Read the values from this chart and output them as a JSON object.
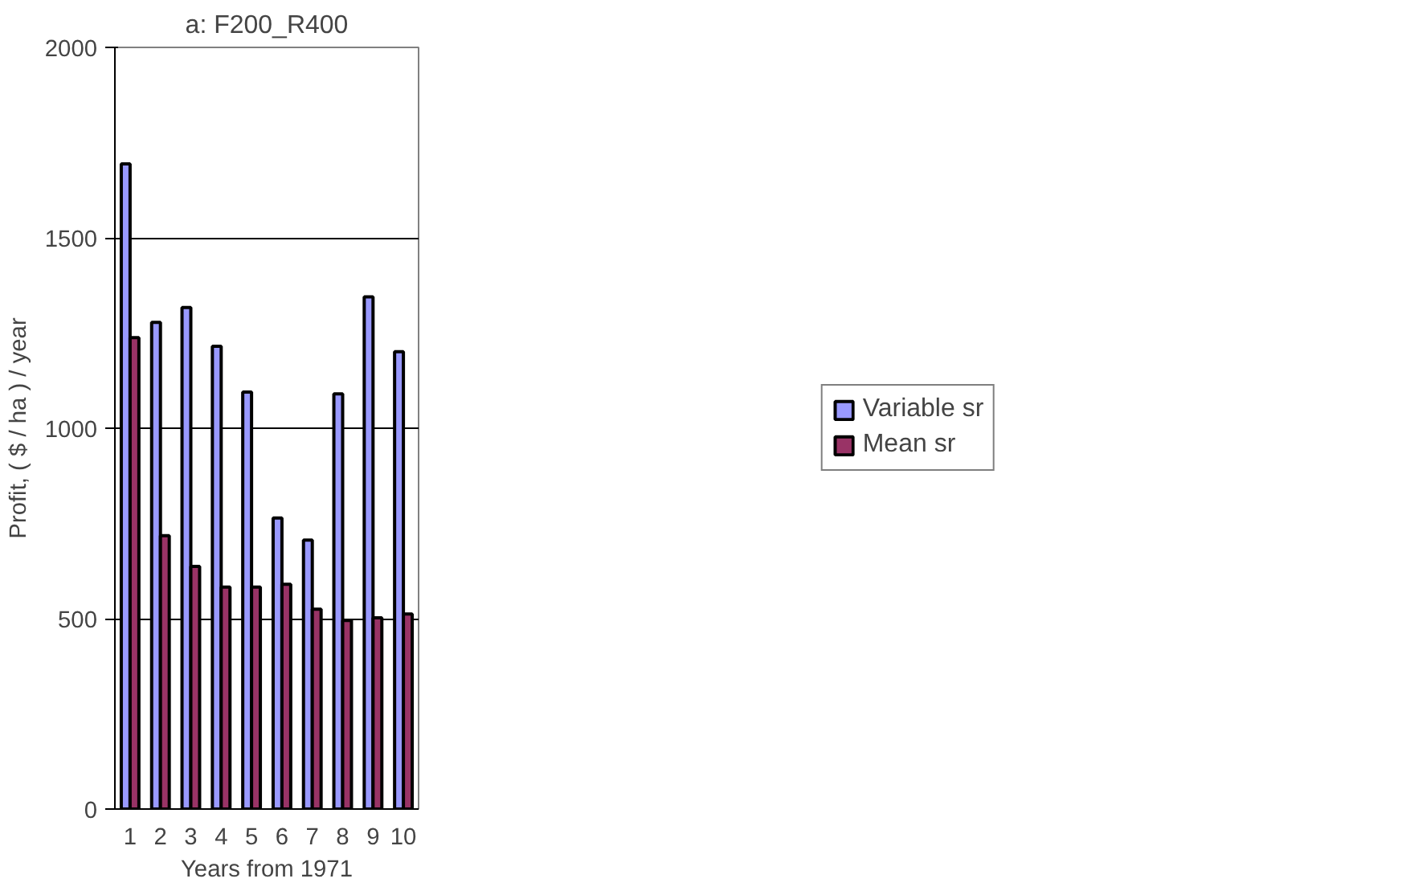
{
  "chart_data": {
    "type": "bar",
    "title": "a: F200_R400",
    "xlabel": "Years from 1971",
    "ylabel": "Profit, ( $ / ha ) / year",
    "categories": [
      "1",
      "2",
      "3",
      "4",
      "5",
      "6",
      "7",
      "8",
      "9",
      "10"
    ],
    "series": [
      {
        "name": "Variable sr",
        "color": "#9999ff",
        "values": [
          1694,
          1278,
          1317,
          1215,
          1095,
          764,
          706,
          1090,
          1345,
          1201
        ]
      },
      {
        "name": "Mean sr",
        "color": "#993366",
        "values": [
          1238,
          718,
          637,
          583,
          583,
          590,
          525,
          495,
          502,
          512
        ]
      }
    ],
    "ylim": [
      0,
      2000
    ],
    "yticks": [
      0,
      500,
      1000,
      1500,
      2000
    ],
    "grid": "y",
    "legend": "right"
  }
}
